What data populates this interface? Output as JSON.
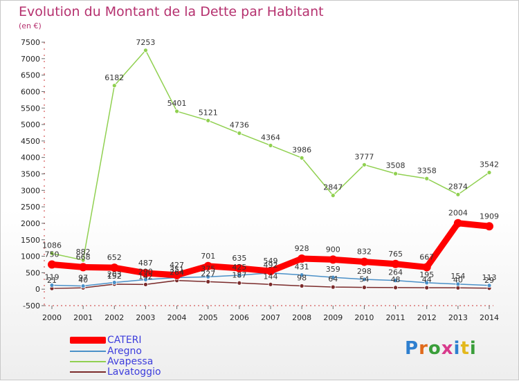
{
  "title": "Evolution du Montant de la Dette par Habitant",
  "subtitle": "(en €)",
  "logo": {
    "text": "Proxiti",
    "colors": [
      "#2e7fcf",
      "#e06a1b",
      "#3a9e3a",
      "#d83a8c",
      "#2e7fcf",
      "#e3b81c",
      "#3a9e3a"
    ]
  },
  "chart_data": {
    "type": "line",
    "title": "Evolution du Montant de la Dette par Habitant",
    "ylabel": "(en €)",
    "x": [
      "2000",
      "2001",
      "2002",
      "2003",
      "2004",
      "2005",
      "2006",
      "2007",
      "2008",
      "2009",
      "2010",
      "2011",
      "2012",
      "2013",
      "2014"
    ],
    "ylim": [
      -500,
      7500
    ],
    "yticks": [
      -500,
      0,
      500,
      1000,
      1500,
      2000,
      2500,
      3000,
      3500,
      4000,
      4500,
      5000,
      5500,
      6000,
      6500,
      7000,
      7500
    ],
    "grid": false,
    "legend": "bottom-left",
    "series": [
      {
        "name": "CATERI",
        "color": "#ff0000",
        "values": [
          750,
          668,
          652,
          487,
          427,
          701,
          635,
          549,
          928,
          900,
          832,
          765,
          667,
          2004,
          1909
        ],
        "labels": [
          "750",
          "668",
          "652",
          "487",
          "427",
          "701",
          "635",
          "549",
          "928",
          "900",
          "832",
          "765",
          "667",
          "2004",
          "1909"
        ]
      },
      {
        "name": "Aregno",
        "color": "#4a90c8",
        "values": [
          119,
          97,
          203,
          290,
          351,
          375,
          425,
          492,
          431,
          359,
          298,
          264,
          195,
          154,
          113
        ],
        "labels": [
          "119",
          "97",
          "203",
          "290",
          "351",
          "375",
          "425",
          "492",
          "431",
          "359",
          "298",
          "264",
          "195",
          "154",
          "113"
        ]
      },
      {
        "name": "Avapessa",
        "color": "#90d050",
        "values": [
          1086,
          882,
          6182,
          7253,
          5401,
          5121,
          4736,
          4364,
          3986,
          2847,
          3777,
          3508,
          3358,
          2874,
          3542
        ],
        "labels": [
          "1086",
          "882",
          "6182",
          "7253",
          "5401",
          "5121",
          "4736",
          "4364",
          "3986",
          "2847",
          "3777",
          "3508",
          "3358",
          "2874",
          "3542"
        ]
      },
      {
        "name": "Lavatoggio",
        "color": "#7a2a2a",
        "values": [
          21,
          40,
          152,
          142,
          264,
          227,
          187,
          144,
          98,
          64,
          54,
          48,
          44,
          40,
          29
        ],
        "labels": [
          "21",
          "40",
          "152",
          "142",
          "264",
          "227",
          "187",
          "144",
          "98",
          "64",
          "54",
          "48",
          "44",
          "40",
          "29"
        ]
      }
    ]
  }
}
